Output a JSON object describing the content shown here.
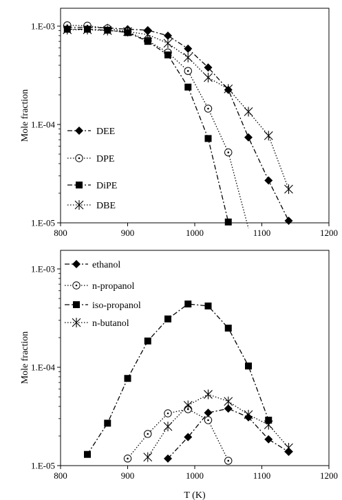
{
  "chart_data": [
    {
      "type": "line",
      "xlabel": "",
      "ylabel": "Mole fraction",
      "xlim": [
        800,
        1200
      ],
      "ylim": [
        1e-05,
        0.002
      ],
      "yscale": "log",
      "x_ticks": [
        800,
        900,
        1000,
        1100,
        1200
      ],
      "x_tick_labels": [
        "800",
        "900",
        "1000",
        "1100",
        "1200"
      ],
      "y_ticks": [
        1e-05,
        0.0001,
        0.001
      ],
      "y_tick_labels": [
        "1.E-05",
        "1.E-04",
        "1.E-03"
      ],
      "grid": false,
      "legend_position": "bottom-left",
      "series": [
        {
          "name": "DEE",
          "marker": "diamond",
          "dash": "dash-dot",
          "x": [
            810,
            840,
            870,
            900,
            930,
            960,
            990,
            1020,
            1050,
            1080,
            1110,
            1140
          ],
          "y": [
            0.00097,
            0.00097,
            0.00096,
            0.00093,
            0.00091,
            0.0008,
            0.00059,
            0.00038,
            0.000225,
            7.4e-05,
            2.7e-05,
            1.05e-05
          ]
        },
        {
          "name": "DPE",
          "marker": "circle-dot",
          "dash": "dotted",
          "x": [
            810,
            840,
            870,
            900,
            930,
            960,
            990,
            1020,
            1050,
            1080
          ],
          "y": [
            0.00102,
            0.00101,
            0.00095,
            0.00088,
            0.00071,
            0.00054,
            0.00035,
            0.000145,
            5.2e-05,
            8.8e-06
          ]
        },
        {
          "name": "DiPE",
          "marker": "square",
          "dash": "dash-dot",
          "x": [
            810,
            840,
            870,
            900,
            930,
            960,
            990,
            1020,
            1050
          ],
          "y": [
            0.00093,
            0.00093,
            0.00091,
            0.00086,
            0.0007,
            0.00051,
            0.00024,
            7.2e-05,
            1.02e-05
          ]
        },
        {
          "name": "DBE",
          "marker": "asterisk",
          "dash": "dotted",
          "x": [
            810,
            840,
            870,
            900,
            930,
            960,
            990,
            1020,
            1050,
            1080,
            1110,
            1140
          ],
          "y": [
            0.00092,
            0.00092,
            0.0009,
            0.00088,
            0.00082,
            0.00067,
            0.00048,
            0.0003,
            0.00023,
            0.000135,
            7.7e-05,
            2.2e-05
          ]
        }
      ]
    },
    {
      "type": "line",
      "xlabel": "T (K)",
      "ylabel": "Mole fraction",
      "xlim": [
        800,
        1200
      ],
      "ylim": [
        1e-05,
        0.002
      ],
      "yscale": "log",
      "x_ticks": [
        800,
        900,
        1000,
        1100,
        1200
      ],
      "x_tick_labels": [
        "800",
        "900",
        "1000",
        "1100",
        "1200"
      ],
      "y_ticks": [
        1e-05,
        0.0001,
        0.001
      ],
      "y_tick_labels": [
        "1.E-05",
        "1.E-04",
        "1.E-03"
      ],
      "grid": false,
      "legend_position": "top-left",
      "series": [
        {
          "name": "ethanol",
          "marker": "diamond",
          "dash": "dash-dot",
          "x": [
            960,
            990,
            1020,
            1050,
            1080,
            1110,
            1140
          ],
          "y": [
            1.18e-05,
            1.95e-05,
            3.45e-05,
            3.8e-05,
            3.1e-05,
            1.85e-05,
            1.38e-05
          ]
        },
        {
          "name": "n-propanol",
          "marker": "circle-dot",
          "dash": "dotted",
          "x": [
            900,
            930,
            960,
            990,
            1020,
            1050
          ],
          "y": [
            1.18e-05,
            2.1e-05,
            3.4e-05,
            3.75e-05,
            2.9e-05,
            1.12e-05
          ]
        },
        {
          "name": "iso-propanol",
          "marker": "square",
          "dash": "dash-dot",
          "x": [
            840,
            870,
            900,
            930,
            960,
            990,
            1020,
            1050,
            1080,
            1110
          ],
          "y": [
            1.3e-05,
            2.7e-05,
            7.7e-05,
            0.000185,
            0.00031,
            0.00044,
            0.00042,
            0.00025,
            0.000103,
            2.9e-05
          ]
        },
        {
          "name": "n-butanol",
          "marker": "asterisk",
          "dash": "dotted",
          "x": [
            930,
            960,
            990,
            1020,
            1050,
            1080,
            1110,
            1140
          ],
          "y": [
            1.22e-05,
            2.5e-05,
            4.1e-05,
            5.3e-05,
            4.5e-05,
            3.3e-05,
            2.6e-05,
            1.52e-05
          ]
        }
      ]
    }
  ]
}
